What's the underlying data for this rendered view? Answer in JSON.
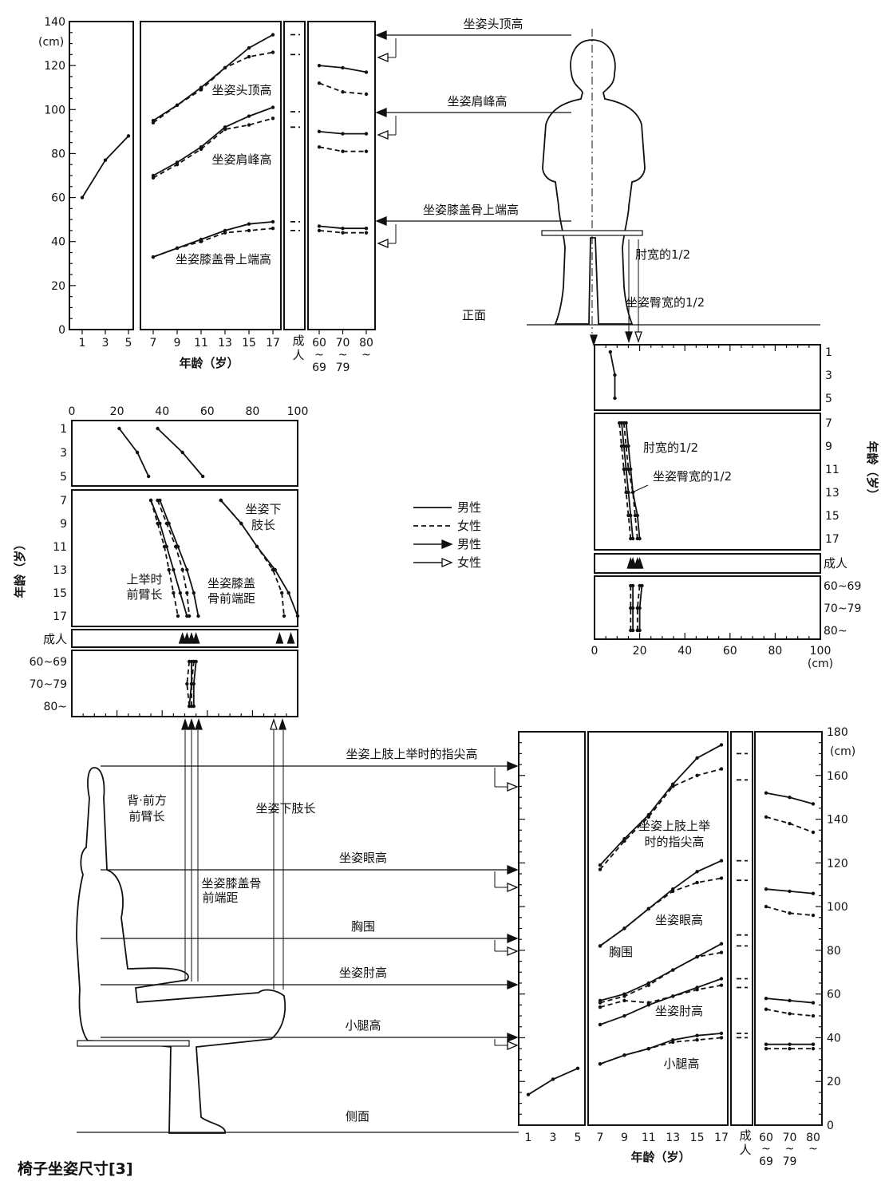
{
  "caption": "椅子坐姿尺寸[3]",
  "legend": {
    "male_line": "男性",
    "female_line": "女性",
    "male_arrow": "男性",
    "female_arrow": "女性"
  },
  "figures": {
    "front_label": "正面",
    "side_label": "侧面",
    "front_dims": [
      "坐姿头顶高",
      "坐姿肩峰高",
      "坐姿膝盖骨上端高",
      "肘宽的1/2",
      "坐姿臀宽的1/2"
    ],
    "side_dims": [
      "坐姿上肢上举时的指尖高",
      "坐姿眼高",
      "胸围",
      "坐姿肘高",
      "小腿高"
    ],
    "side_vertical": [
      "背·前方",
      "前臂长",
      "坐姿下肢长",
      "坐姿膝盖骨",
      "前端距"
    ]
  },
  "chart_data": [
    {
      "id": "front_heights",
      "type": "line",
      "ylabel": "(cm)",
      "xlabel": "年龄（岁）",
      "ylim": [
        0,
        140
      ],
      "yticks": [
        0,
        20,
        40,
        60,
        80,
        100,
        120,
        140
      ],
      "x_sections": [
        {
          "ticks": [
            "1",
            "3",
            "5"
          ]
        },
        {
          "ticks": [
            "7",
            "9",
            "11",
            "13",
            "15",
            "17"
          ]
        },
        {
          "ticks": [
            "成人"
          ]
        },
        {
          "ticks": [
            "60~69",
            "70~79",
            "80~"
          ]
        }
      ],
      "series": [
        {
          "label": "坐姿头顶高",
          "child": {
            "ages": [
              1,
              3,
              5
            ],
            "values": [
              60,
              77,
              88
            ]
          },
          "male": {
            "ages": [
              7,
              9,
              11,
              13,
              15,
              17
            ],
            "values": [
              95,
              102,
              110,
              119,
              128,
              134
            ]
          },
          "female": {
            "ages": [
              7,
              9,
              11,
              13,
              15,
              17
            ],
            "values": [
              94,
              102,
              109,
              119,
              124,
              126
            ]
          },
          "adult": {
            "male": 134,
            "female": 125
          },
          "elderly": {
            "male": [
              120,
              119,
              117
            ],
            "female": [
              112,
              108,
              107
            ]
          }
        },
        {
          "label": "坐姿肩峰高",
          "male": {
            "ages": [
              7,
              9,
              11,
              13,
              15,
              17
            ],
            "values": [
              70,
              76,
              83,
              92,
              97,
              101
            ]
          },
          "female": {
            "ages": [
              7,
              9,
              11,
              13,
              15,
              17
            ],
            "values": [
              69,
              75,
              82,
              91,
              93,
              96
            ]
          },
          "adult": {
            "male": 99,
            "female": 92
          },
          "elderly": {
            "male": [
              90,
              89,
              89
            ],
            "female": [
              83,
              81,
              81
            ]
          }
        },
        {
          "label": "坐姿膝盖骨上端高",
          "male": {
            "ages": [
              7,
              9,
              11,
              13,
              15,
              17
            ],
            "values": [
              33,
              37,
              41,
              45,
              48,
              49
            ]
          },
          "female": {
            "ages": [
              7,
              9,
              11,
              13,
              15,
              17
            ],
            "values": [
              33,
              37,
              40,
              44,
              45,
              46
            ]
          },
          "adult": {
            "male": 49,
            "female": 45
          },
          "elderly": {
            "male": [
              47,
              46,
              46
            ],
            "female": [
              45,
              44,
              44
            ]
          }
        }
      ]
    },
    {
      "id": "half_widths",
      "type": "line",
      "orientation": "horizontal",
      "xlabel": "(cm)",
      "ylabel": "年龄（岁）",
      "xlim": [
        0,
        100
      ],
      "xticks": [
        0,
        20,
        40,
        60,
        80,
        100
      ],
      "y_sections": [
        {
          "ticks": [
            "1",
            "3",
            "5"
          ]
        },
        {
          "ticks": [
            "7",
            "9",
            "11",
            "13",
            "15",
            "17"
          ]
        },
        {
          "ticks": [
            "成人"
          ]
        },
        {
          "ticks": [
            "60~69",
            "70~79",
            "80~"
          ]
        }
      ],
      "series": [
        {
          "label": "肘宽的1/2",
          "child": {
            "ages": [
              1,
              3,
              5
            ],
            "values": [
              7,
              9,
              9
            ]
          },
          "male": {
            "ages": [
              7,
              9,
              11,
              13,
              15,
              17
            ],
            "values": [
              12,
              13,
              14,
              15,
              16,
              17
            ]
          },
          "female": {
            "ages": [
              7,
              9,
              11,
              13,
              15,
              17
            ],
            "values": [
              11,
              12,
              13,
              14,
              15,
              16
            ]
          },
          "adult": {
            "male": 17,
            "female": 16
          },
          "elderly": {
            "male": [
              17,
              17,
              17
            ],
            "female": [
              16,
              16,
              16
            ]
          }
        },
        {
          "label": "坐姿臀宽的1/2",
          "male": {
            "ages": [
              7,
              9,
              11,
              13,
              15,
              17
            ],
            "values": [
              14,
              15,
              16,
              17,
              19,
              20
            ]
          },
          "female": {
            "ages": [
              7,
              9,
              11,
              13,
              15,
              17
            ],
            "values": [
              13,
              14,
              15,
              17,
              18,
              19
            ]
          },
          "adult": {
            "male": 20,
            "female": 19
          },
          "elderly": {
            "male": [
              21,
              20,
              20
            ],
            "female": [
              20,
              19,
              19
            ]
          }
        }
      ]
    },
    {
      "id": "lengths",
      "type": "line",
      "orientation": "horizontal",
      "ylabel": "年龄（岁）",
      "xlim": [
        0,
        100
      ],
      "xticks": [
        0,
        20,
        40,
        60,
        80,
        100
      ],
      "y_sections": [
        {
          "ticks": [
            "1",
            "3",
            "5"
          ]
        },
        {
          "ticks": [
            "7",
            "9",
            "11",
            "13",
            "15",
            "17"
          ]
        },
        {
          "ticks": [
            "成人"
          ]
        },
        {
          "ticks": [
            "60~69",
            "70~79",
            "80~"
          ]
        }
      ],
      "series": [
        {
          "label": "上举时前臂长",
          "child": {
            "ages": [
              1,
              3,
              5
            ],
            "values": [
              21,
              29,
              34
            ]
          },
          "male": {
            "ages": [
              7,
              9,
              11,
              13,
              15,
              17
            ],
            "values": [
              35,
              39,
              42,
              45,
              48,
              51
            ]
          },
          "female": {
            "ages": [
              7,
              9,
              11,
              13,
              15,
              17
            ],
            "values": [
              35,
              38,
              41,
              43,
              45,
              47
            ]
          },
          "adult": {
            "male": 51,
            "female": 49
          },
          "elderly": {
            "male": [
              53,
              53,
              52
            ],
            "female": [
              52,
              51,
              52
            ]
          }
        },
        {
          "label": "坐姿膝盖骨前端距",
          "child": {
            "ages": [
              1,
              3,
              5
            ],
            "values": [
              38,
              49,
              58
            ]
          },
          "male": {
            "ages": [
              7,
              9,
              11,
              13,
              15,
              17
            ],
            "values": [
              39,
              43,
              47,
              51,
              54,
              56
            ]
          },
          "female": {
            "ages": [
              7,
              9,
              11,
              13,
              15,
              17
            ],
            "values": [
              38,
              42,
              46,
              49,
              51,
              52
            ]
          },
          "adult": {
            "male": 55,
            "female": 53
          },
          "elderly": {
            "male": [
              55,
              54,
              54
            ],
            "female": [
              54,
              53,
              53
            ]
          }
        },
        {
          "label": "坐姿下肢长",
          "male": {
            "ages": [
              7,
              9,
              11,
              13,
              15,
              17
            ],
            "values": [
              66,
              75,
              82,
              90,
              96,
              100
            ]
          },
          "female": {
            "ages": [
              7,
              9,
              11,
              13,
              15,
              17
            ],
            "values": [
              66,
              75,
              82,
              89,
              93,
              94
            ]
          },
          "adult": {
            "male": 97,
            "female": 92
          }
        }
      ]
    },
    {
      "id": "side_heights",
      "type": "line",
      "ylabel": "(cm)",
      "xlabel": "年龄（岁）",
      "ylim": [
        0,
        180
      ],
      "yticks": [
        0,
        20,
        40,
        60,
        80,
        100,
        120,
        140,
        160,
        180
      ],
      "x_sections": [
        {
          "ticks": [
            "1",
            "3",
            "5"
          ]
        },
        {
          "ticks": [
            "7",
            "9",
            "11",
            "13",
            "15",
            "17"
          ]
        },
        {
          "ticks": [
            "成人"
          ]
        },
        {
          "ticks": [
            "60~69",
            "70~79",
            "80~"
          ]
        }
      ],
      "series": [
        {
          "label": "坐姿上肢上举时的指尖高",
          "male": {
            "ages": [
              7,
              9,
              11,
              13,
              15,
              17
            ],
            "values": [
              119,
              131,
              142,
              156,
              168,
              174
            ]
          },
          "female": {
            "ages": [
              7,
              9,
              11,
              13,
              15,
              17
            ],
            "values": [
              117,
              130,
              141,
              155,
              160,
              163
            ]
          },
          "adult": {
            "male": 170,
            "female": 158
          },
          "elderly": {
            "male": [
              152,
              150,
              147
            ],
            "female": [
              141,
              138,
              134
            ]
          }
        },
        {
          "label": "坐姿眼高",
          "male": {
            "ages": [
              7,
              9,
              11,
              13,
              15,
              17
            ],
            "values": [
              82,
              90,
              99,
              108,
              116,
              121
            ]
          },
          "female": {
            "ages": [
              7,
              9,
              11,
              13,
              15,
              17
            ],
            "values": [
              82,
              90,
              99,
              107,
              111,
              113
            ]
          },
          "adult": {
            "male": 121,
            "female": 112
          },
          "elderly": {
            "male": [
              108,
              107,
              106
            ],
            "female": [
              100,
              97,
              96
            ]
          }
        },
        {
          "label": "胸围",
          "male": {
            "ages": [
              7,
              9,
              11,
              13,
              15,
              17
            ],
            "values": [
              57,
              60,
              65,
              71,
              77,
              83
            ]
          },
          "female": {
            "ages": [
              7,
              9,
              11,
              13,
              15,
              17
            ],
            "values": [
              56,
              59,
              64,
              71,
              77,
              79
            ]
          },
          "adult": {
            "male": 87,
            "female": 82
          }
        },
        {
          "label": "坐姿肘高",
          "male": {
            "ages": [
              7,
              9,
              11,
              13,
              15,
              17
            ],
            "values": [
              46,
              50,
              55,
              59,
              63,
              67
            ]
          },
          "female": {
            "ages": [
              7,
              9,
              11,
              13,
              15,
              17
            ],
            "values": [
              54,
              57,
              56,
              59,
              62,
              64
            ]
          },
          "adult": {
            "male": 67,
            "female": 63
          },
          "elderly": {
            "male": [
              58,
              57,
              56
            ],
            "female": [
              53,
              51,
              50
            ]
          }
        },
        {
          "label": "小腿高",
          "child": {
            "ages": [
              1,
              3,
              5
            ],
            "values": [
              14,
              21,
              26
            ]
          },
          "male": {
            "ages": [
              7,
              9,
              11,
              13,
              15,
              17
            ],
            "values": [
              28,
              32,
              35,
              39,
              41,
              42
            ]
          },
          "female": {
            "ages": [
              7,
              9,
              11,
              13,
              15,
              17
            ],
            "values": [
              28,
              32,
              35,
              38,
              39,
              40
            ]
          },
          "adult": {
            "male": 42,
            "female": 40
          },
          "elderly": {
            "male": [
              37,
              37,
              37
            ],
            "female": [
              35,
              35,
              35
            ]
          }
        }
      ]
    }
  ]
}
